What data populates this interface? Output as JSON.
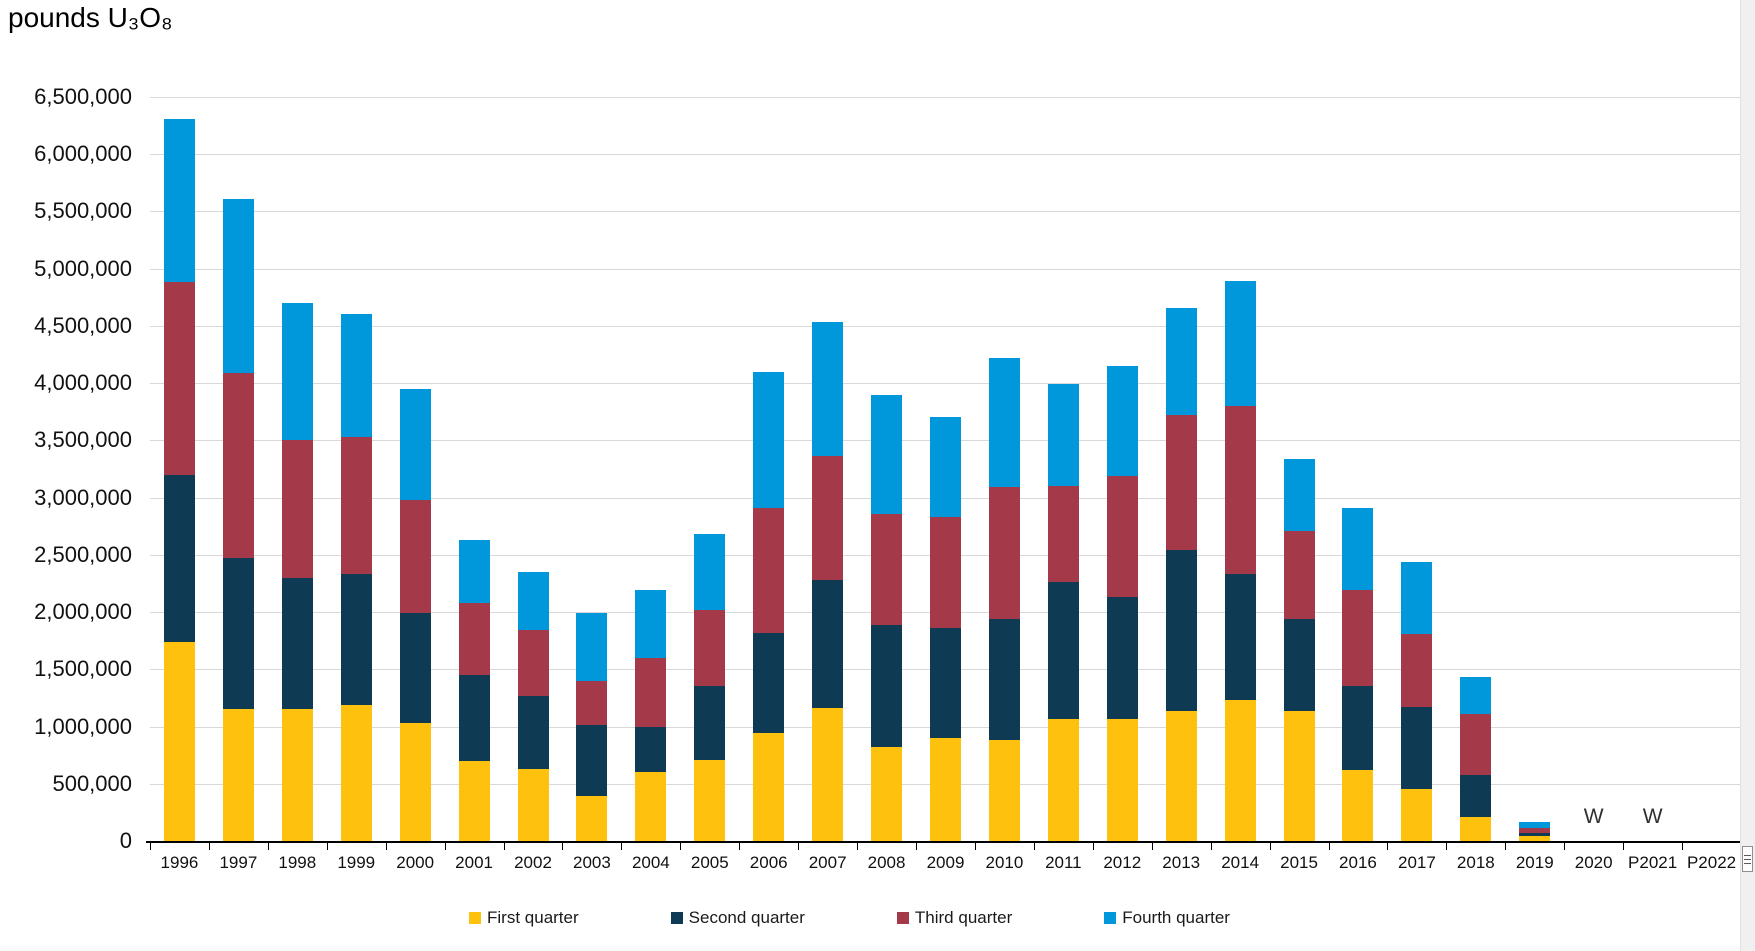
{
  "title": "pounds U₃O₈",
  "chart_data": {
    "type": "bar",
    "stacked": true,
    "title": "pounds U₃O₈",
    "xlabel": "",
    "ylabel": "pounds U₃O₈",
    "ylim": [
      0,
      6500000
    ],
    "ytick_step": 500000,
    "ytick_labels": [
      "0",
      "500,000",
      "1,000,000",
      "1,500,000",
      "2,000,000",
      "2,500,000",
      "3,000,000",
      "3,500,000",
      "4,000,000",
      "4,500,000",
      "5,000,000",
      "5,500,000",
      "6,000,000",
      "6,500,000"
    ],
    "grid": true,
    "legend_position": "bottom",
    "categories": [
      "1996",
      "1997",
      "1998",
      "1999",
      "2000",
      "2001",
      "2002",
      "2003",
      "2004",
      "2005",
      "2006",
      "2007",
      "2008",
      "2009",
      "2010",
      "2011",
      "2012",
      "2013",
      "2014",
      "2015",
      "2016",
      "2017",
      "2018",
      "2019",
      "2020",
      "P2021",
      "P2022"
    ],
    "series": [
      {
        "name": "First quarter",
        "color": "#FEC10D",
        "values": [
          1740000,
          1150000,
          1150000,
          1190000,
          1030000,
          700000,
          630000,
          390000,
          600000,
          710000,
          940000,
          1160000,
          820000,
          900000,
          880000,
          1070000,
          1070000,
          1140000,
          1230000,
          1140000,
          620000,
          450000,
          210000,
          40000,
          null,
          null,
          null
        ]
      },
      {
        "name": "Second quarter",
        "color": "#0E3A54",
        "values": [
          1460000,
          1320000,
          1150000,
          1140000,
          960000,
          750000,
          640000,
          620000,
          400000,
          640000,
          880000,
          1120000,
          1070000,
          960000,
          1060000,
          1190000,
          1060000,
          1400000,
          1100000,
          800000,
          730000,
          720000,
          370000,
          30000,
          null,
          null,
          null
        ]
      },
      {
        "name": "Third quarter",
        "color": "#A43A49",
        "values": [
          1680000,
          1620000,
          1200000,
          1200000,
          990000,
          630000,
          570000,
          390000,
          600000,
          670000,
          1090000,
          1080000,
          970000,
          970000,
          1150000,
          840000,
          1060000,
          1180000,
          1470000,
          770000,
          840000,
          640000,
          530000,
          40000,
          null,
          null,
          null
        ]
      },
      {
        "name": "Fourth quarter",
        "color": "#0098DB",
        "values": [
          1430000,
          1520000,
          1200000,
          1070000,
          970000,
          550000,
          510000,
          590000,
          590000,
          660000,
          1190000,
          1170000,
          1040000,
          870000,
          1130000,
          890000,
          960000,
          940000,
          1090000,
          630000,
          720000,
          630000,
          320000,
          60000,
          null,
          null,
          null
        ]
      }
    ],
    "annotations": [
      {
        "category": "2020",
        "text": "W"
      },
      {
        "category": "P2021",
        "text": "W"
      }
    ]
  }
}
